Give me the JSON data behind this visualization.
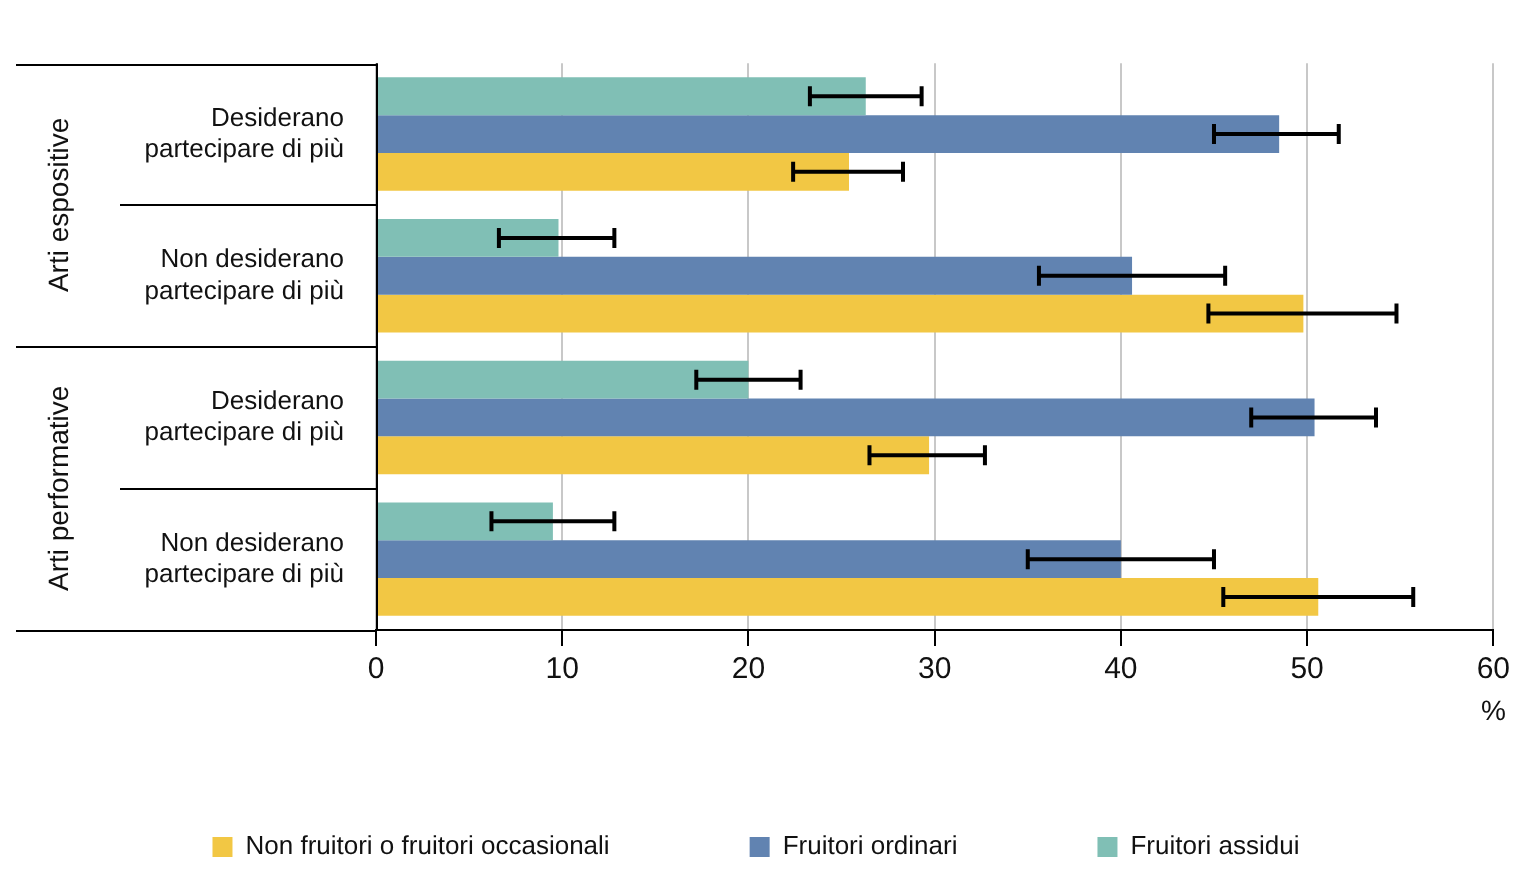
{
  "chart_data": {
    "type": "bar",
    "orientation": "horizontal",
    "xlabel": "%",
    "categories": [
      "Desiderano partecipare di più",
      "Non desiderano partecipare di più",
      "Desiderano partecipare di più",
      "Non desiderano partecipare di più"
    ],
    "annotations": [
      "Arti espositive",
      "Arti performative"
    ],
    "series": [
      {
        "name": "Non fruitori o fruitori occasionali",
        "color": "#f2c744",
        "values": [
          25.4,
          49.8,
          29.7,
          50.6
        ],
        "errors": [
          [
            22.4,
            28.3
          ],
          [
            44.7,
            54.8
          ],
          [
            26.5,
            32.7
          ],
          [
            45.5,
            55.7
          ]
        ]
      },
      {
        "name": "Fruitori ordinari",
        "color": "#6183b1",
        "values": [
          48.5,
          40.6,
          50.4,
          40.0
        ],
        "errors": [
          [
            45.0,
            51.7
          ],
          [
            35.6,
            45.6
          ],
          [
            47.0,
            53.7
          ],
          [
            35.0,
            45.0
          ]
        ]
      },
      {
        "name": "Fruitori assidui",
        "color": "#80bfb5",
        "values": [
          26.3,
          9.8,
          20.0,
          9.5
        ],
        "errors": [
          [
            23.3,
            29.3
          ],
          [
            6.6,
            12.8
          ],
          [
            17.2,
            22.8
          ],
          [
            6.2,
            12.8
          ]
        ]
      }
    ],
    "xlim": [
      0,
      60
    ],
    "xticks": [
      0,
      10,
      20,
      30,
      40,
      50,
      60
    ],
    "grid": "x",
    "legend": "bottom"
  }
}
